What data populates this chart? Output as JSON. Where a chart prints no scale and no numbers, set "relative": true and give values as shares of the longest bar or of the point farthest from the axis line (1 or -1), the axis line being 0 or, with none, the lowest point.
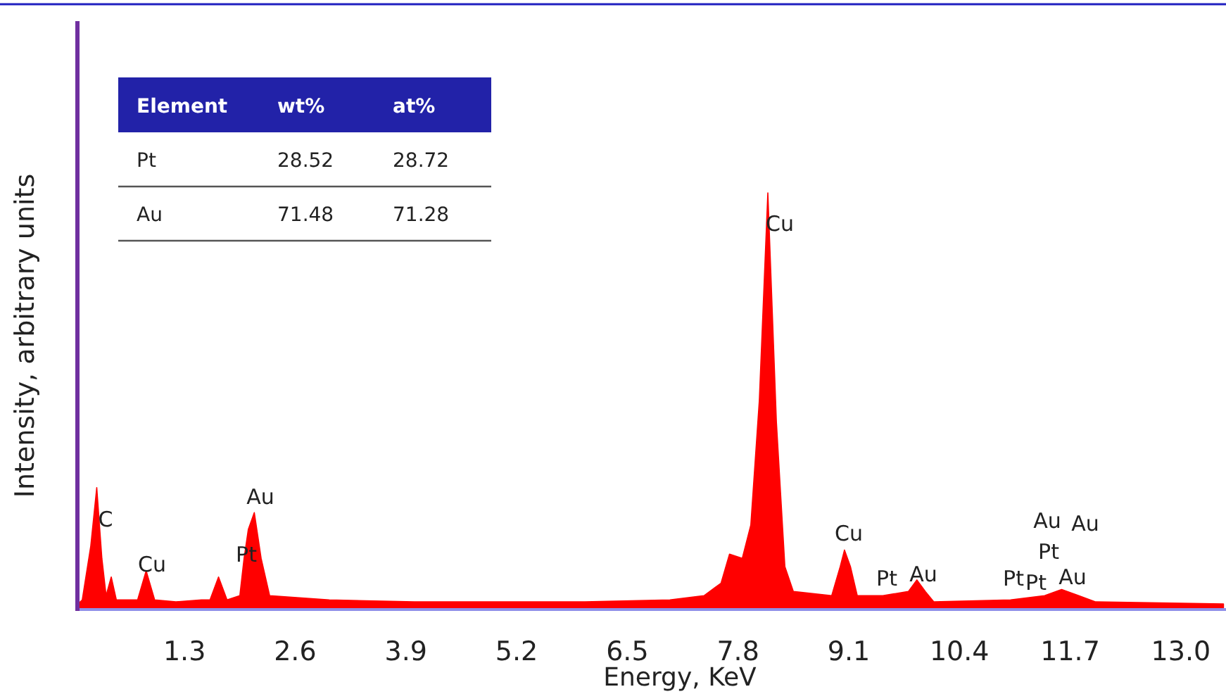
{
  "chart_data": [
    {
      "type": "area",
      "xlabel": "Energy, KeV",
      "ylabel": "Intensity, arbitrary units",
      "relative": true,
      "xlim": [
        0,
        13.5
      ],
      "xticks": [
        1.3,
        2.6,
        3.9,
        5.2,
        6.5,
        7.8,
        9.1,
        10.4,
        11.7,
        {
          "value": 13,
          "label": "13.0"
        }
      ],
      "grid": false,
      "x": [
        0.05,
        0.1,
        0.2,
        0.27,
        0.33,
        0.38,
        0.44,
        0.5,
        0.75,
        0.85,
        0.95,
        1.2,
        1.5,
        1.6,
        1.7,
        1.8,
        1.95,
        2.0,
        2.05,
        2.12,
        2.2,
        2.3,
        3.0,
        4.0,
        5.0,
        6.0,
        7.0,
        7.4,
        7.6,
        7.7,
        7.85,
        7.95,
        8.05,
        8.15,
        8.25,
        8.35,
        8.45,
        8.9,
        9.0,
        9.05,
        9.12,
        9.2,
        9.5,
        9.8,
        9.9,
        10.0,
        10.1,
        11.0,
        11.4,
        11.6,
        11.8,
        12.0,
        13.5
      ],
      "series": [
        {
          "color": "#ff0000",
          "values": [
            0.01,
            0.02,
            0.15,
            0.29,
            0.12,
            0.03,
            0.075,
            0.02,
            0.02,
            0.09,
            0.02,
            0.015,
            0.02,
            0.02,
            0.075,
            0.02,
            0.03,
            0.12,
            0.19,
            0.23,
            0.12,
            0.03,
            0.02,
            0.015,
            0.015,
            0.015,
            0.02,
            0.03,
            0.06,
            0.13,
            0.12,
            0.2,
            0.5,
            1.0,
            0.45,
            0.1,
            0.04,
            0.03,
            0.1,
            0.14,
            0.1,
            0.03,
            0.03,
            0.04,
            0.068,
            0.04,
            0.015,
            0.02,
            0.03,
            0.045,
            0.03,
            0.015,
            0.01
          ]
        }
      ],
      "annotations": [
        "C",
        "Cu",
        "Pt",
        "Au",
        "Cu",
        "Cu",
        "Pt",
        "Au",
        "Pt",
        "Pt",
        "Au",
        "Pt",
        "Au",
        "Au"
      ]
    },
    {
      "type": "other",
      "xlabel": "Element",
      "categories": [
        "Pt",
        "Au"
      ],
      "data_labels": true,
      "series": [
        {
          "name": "wt%",
          "values": [
            28.52,
            71.48
          ]
        },
        {
          "name": "at%",
          "values": [
            28.72,
            71.28
          ]
        }
      ]
    }
  ]
}
